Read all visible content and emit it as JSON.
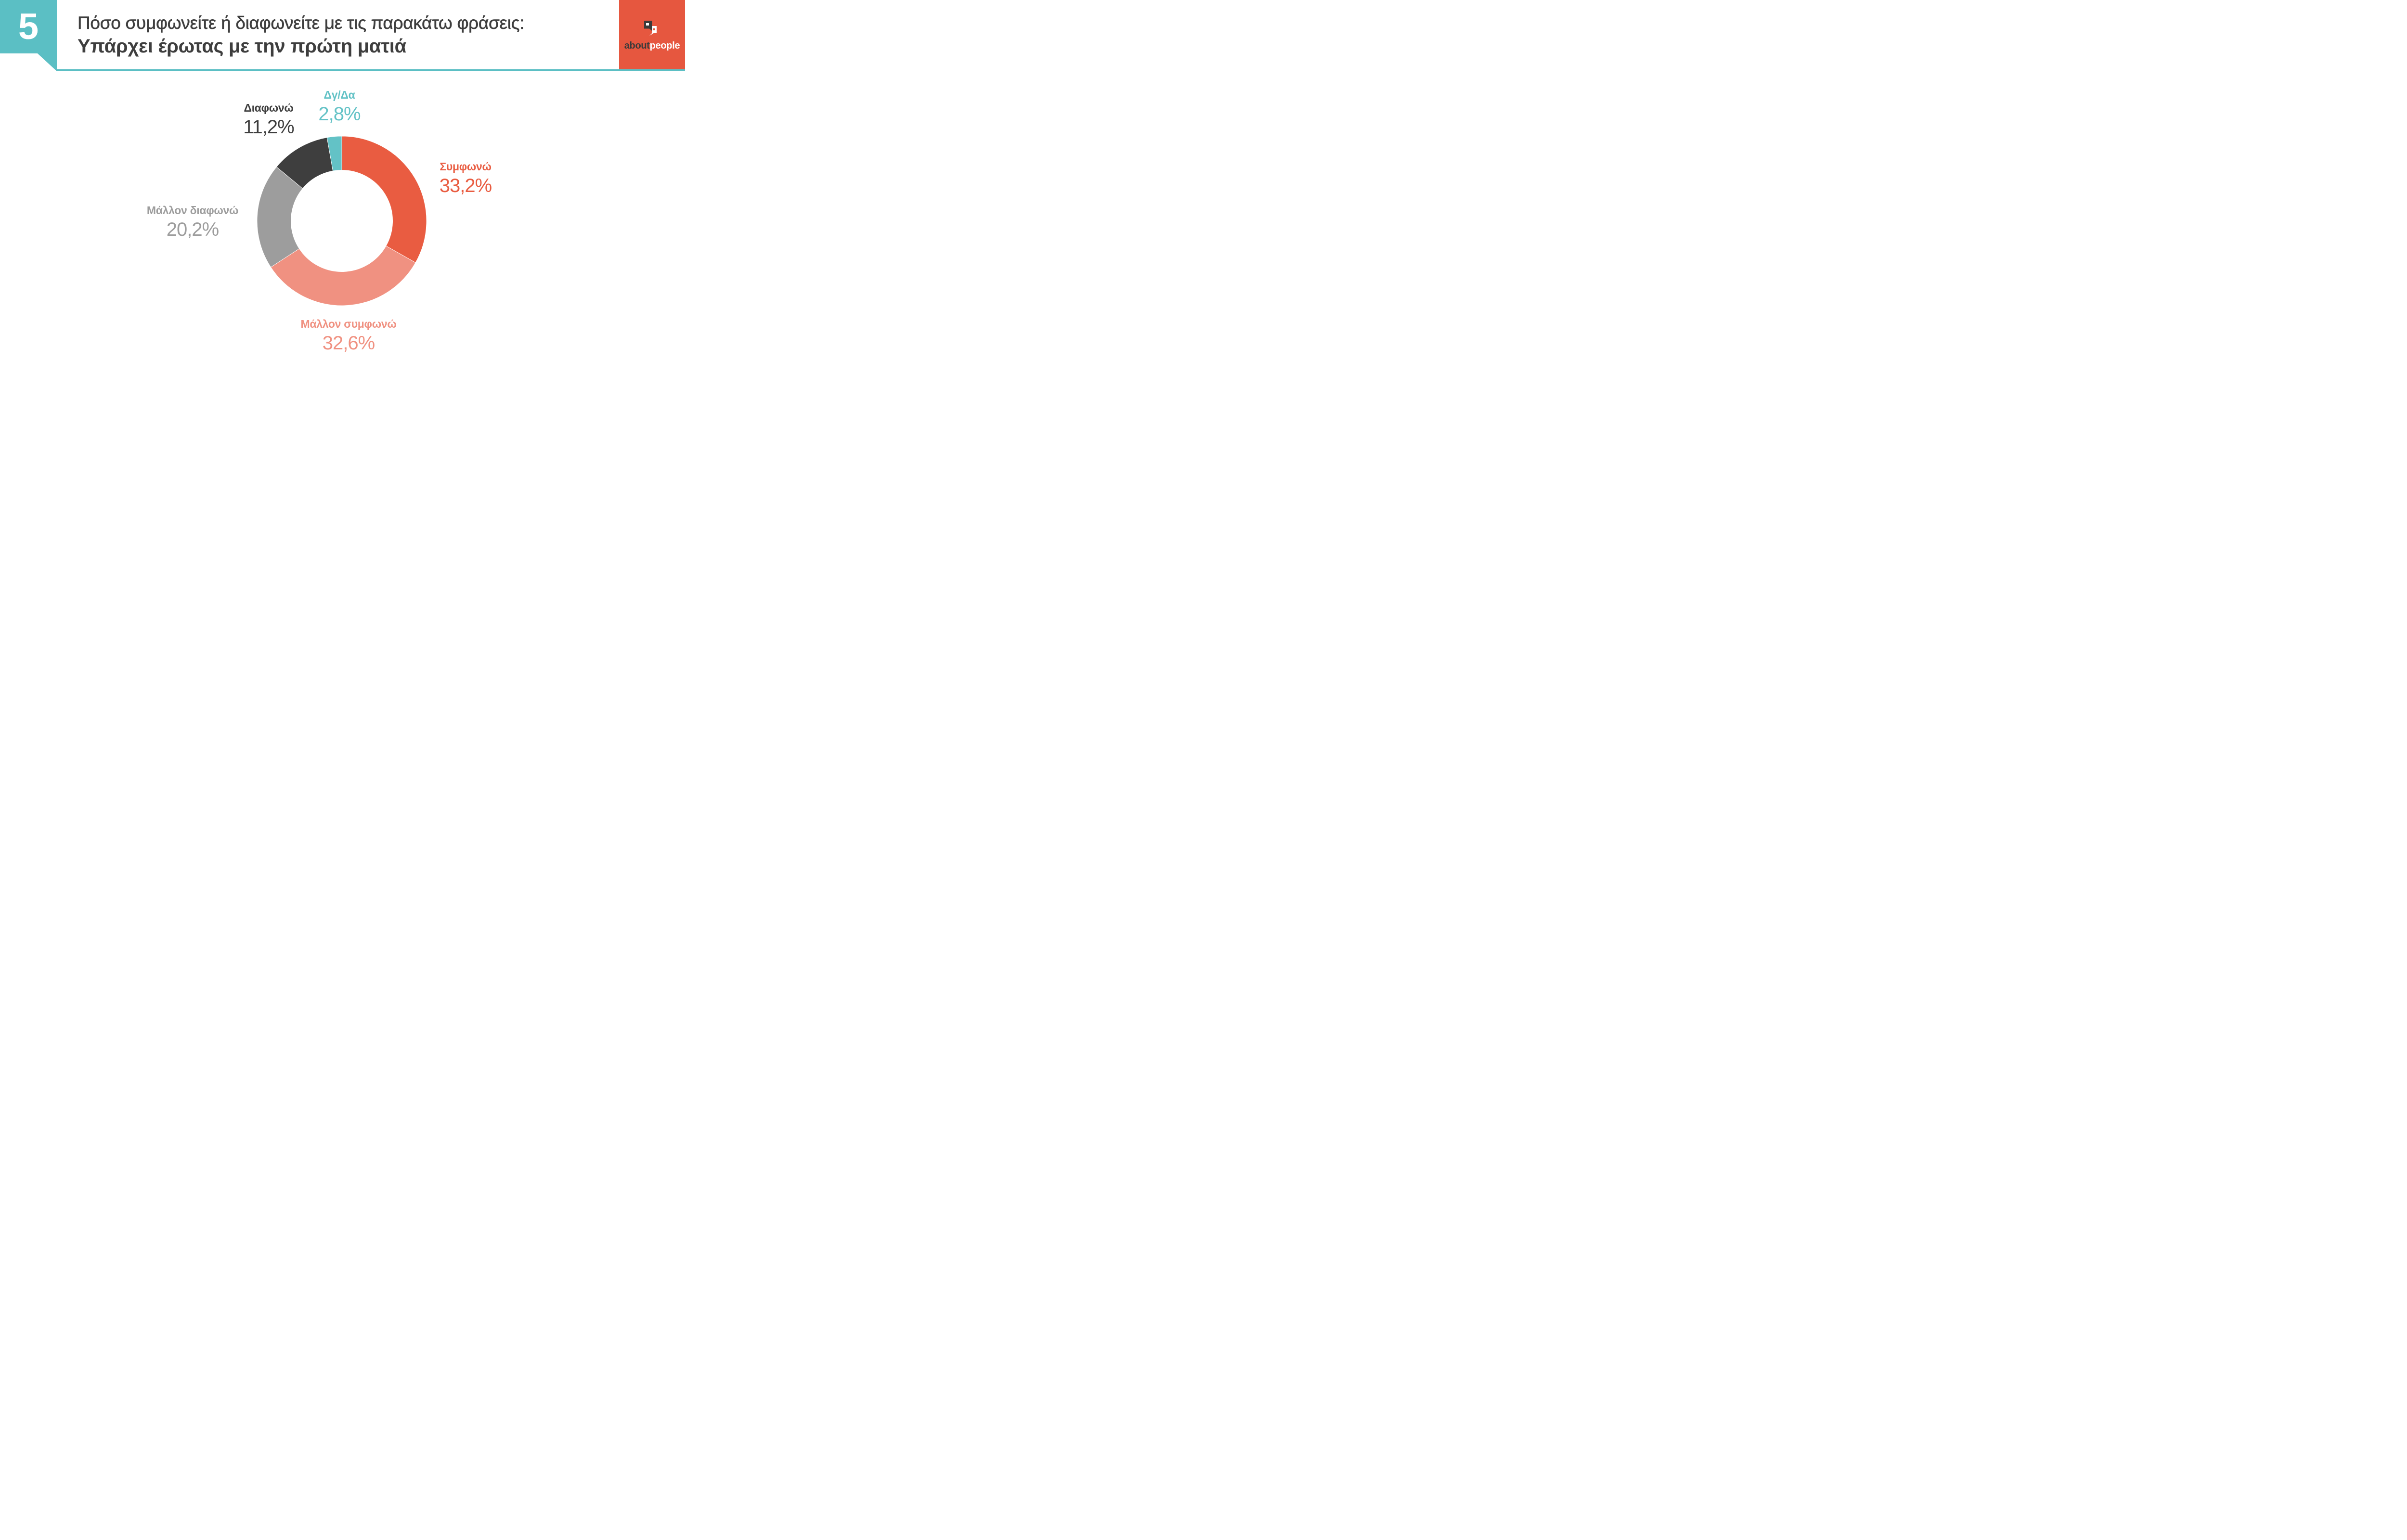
{
  "slide": {
    "number": "5",
    "title_line1": "Πόσο συμφωνείτε ή διαφωνείτε με τις παρακάτω φράσεις:",
    "title_line2": "Υπάρχει έρωτας με την πρώτη ματιά"
  },
  "logo": {
    "text_dark": "about",
    "text_light": "people"
  },
  "colors": {
    "badge_teal": "#5BBFC4",
    "separator_teal": "#5BBFC4",
    "logo_orange": "#E6573F",
    "logo_dark": "#3A3A3A",
    "title_text": "#3E3E3E"
  },
  "chart_data": {
    "type": "pie",
    "subtype": "donut",
    "title": "Υπάρχει έρωτας με την πρώτη ματιά",
    "unit": "%",
    "decimal_separator": ",",
    "direction": "clockwise",
    "start_angle_deg": 0,
    "inner_radius_ratio": 0.6,
    "legend_position": "callout-labels",
    "segments": [
      {
        "label": "Συμφωνώ",
        "value": 33.2,
        "value_label": "33,2%",
        "color": "#E95C41"
      },
      {
        "label": "Μάλλον συμφωνώ",
        "value": 32.6,
        "value_label": "32,6%",
        "color": "#F09181"
      },
      {
        "label": "Μάλλον διαφωνώ",
        "value": 20.2,
        "value_label": "20,2%",
        "color": "#9D9D9D"
      },
      {
        "label": "Διαφωνώ",
        "value": 11.2,
        "value_label": "11,2%",
        "color": "#3E3E3E"
      },
      {
        "label": "Δγ/Δα",
        "value": 2.8,
        "value_label": "2,8%",
        "color": "#63C2C6"
      }
    ]
  }
}
